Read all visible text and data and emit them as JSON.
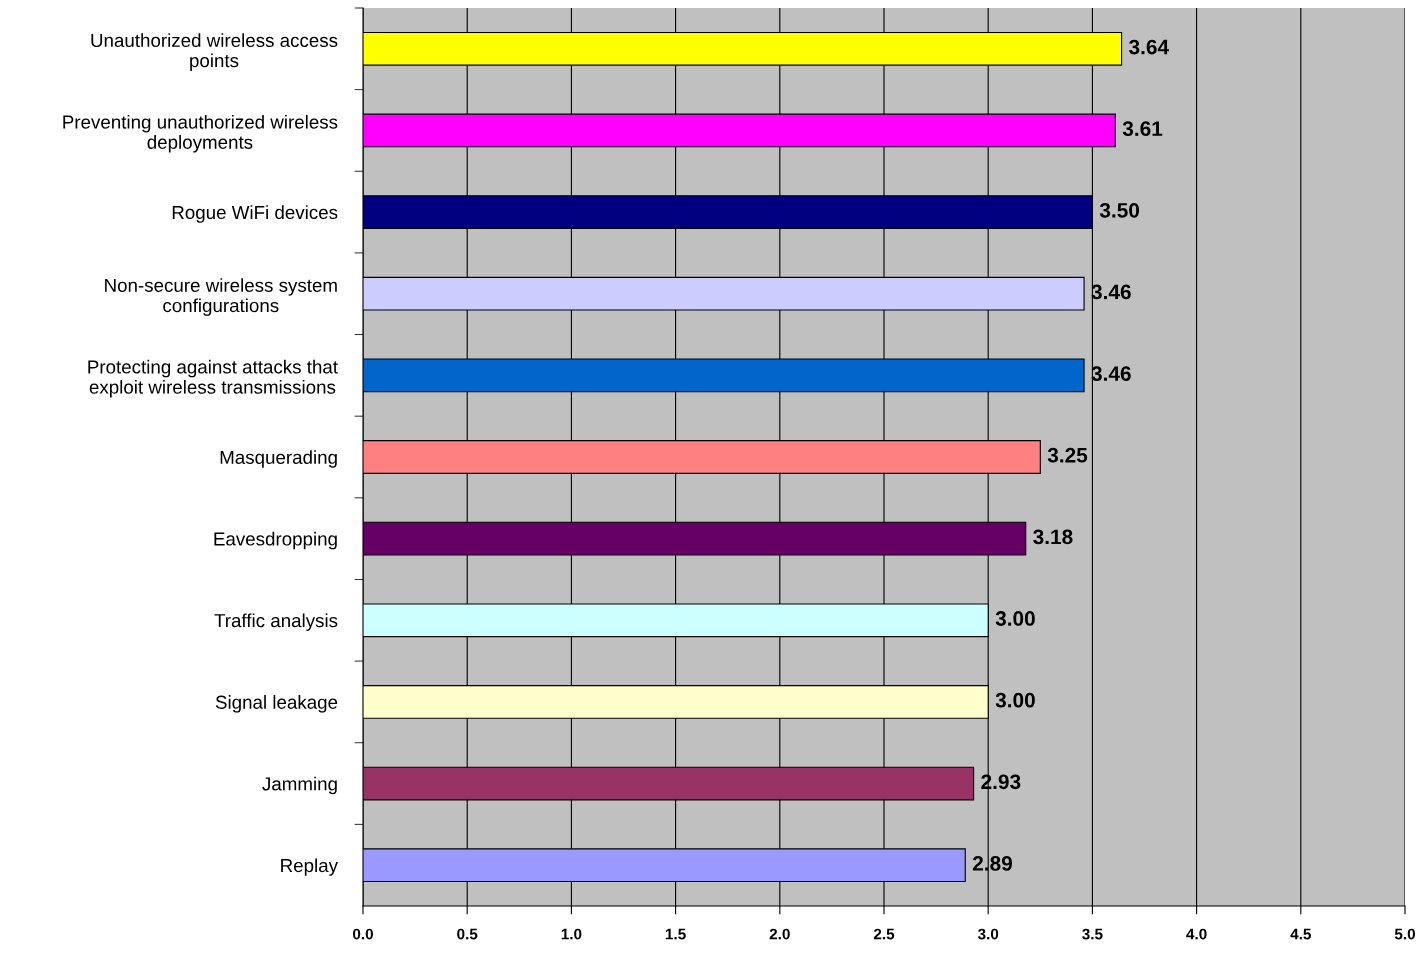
{
  "chart_data": {
    "type": "bar",
    "orientation": "horizontal",
    "categories": [
      "Unauthorized wireless access points",
      "Preventing unauthorized wireless deployments",
      "Rogue WiFi devices",
      "Non-secure wireless system configurations",
      "Protecting against attacks that exploit wireless transmissions",
      "Masquerading",
      "Eavesdropping",
      "Traffic analysis",
      "Signal leakage",
      "Jamming",
      "Replay"
    ],
    "values": [
      3.64,
      3.61,
      3.5,
      3.46,
      3.46,
      3.25,
      3.18,
      3.0,
      3.0,
      2.93,
      2.89
    ],
    "value_labels": [
      "3.64",
      "3.61",
      "3.50",
      "3.46",
      "3.46",
      "3.25",
      "3.18",
      "3.00",
      "3.00",
      "2.93",
      "2.89"
    ],
    "colors": [
      "#ffff00",
      "#ff00ff",
      "#000080",
      "#ccccff",
      "#0066cc",
      "#ff8080",
      "#660066",
      "#ccffff",
      "#ffffcc",
      "#993366",
      "#9999ff"
    ],
    "xlim": [
      0,
      5
    ],
    "xticks": [
      {
        "value": 0,
        "label": "0.0"
      },
      {
        "value": 0.5,
        "label": "0.5"
      },
      {
        "value": 1,
        "label": "1.0"
      },
      {
        "value": 1.5,
        "label": "1.5"
      },
      {
        "value": 2,
        "label": "2.0"
      },
      {
        "value": 2.5,
        "label": "2.5"
      },
      {
        "value": 3,
        "label": "3.0"
      },
      {
        "value": 3.5,
        "label": "3.5"
      },
      {
        "value": 4,
        "label": "4.0"
      },
      {
        "value": 4.5,
        "label": "4.5"
      },
      {
        "value": 5,
        "label": "5.0"
      }
    ],
    "grid": "x"
  }
}
